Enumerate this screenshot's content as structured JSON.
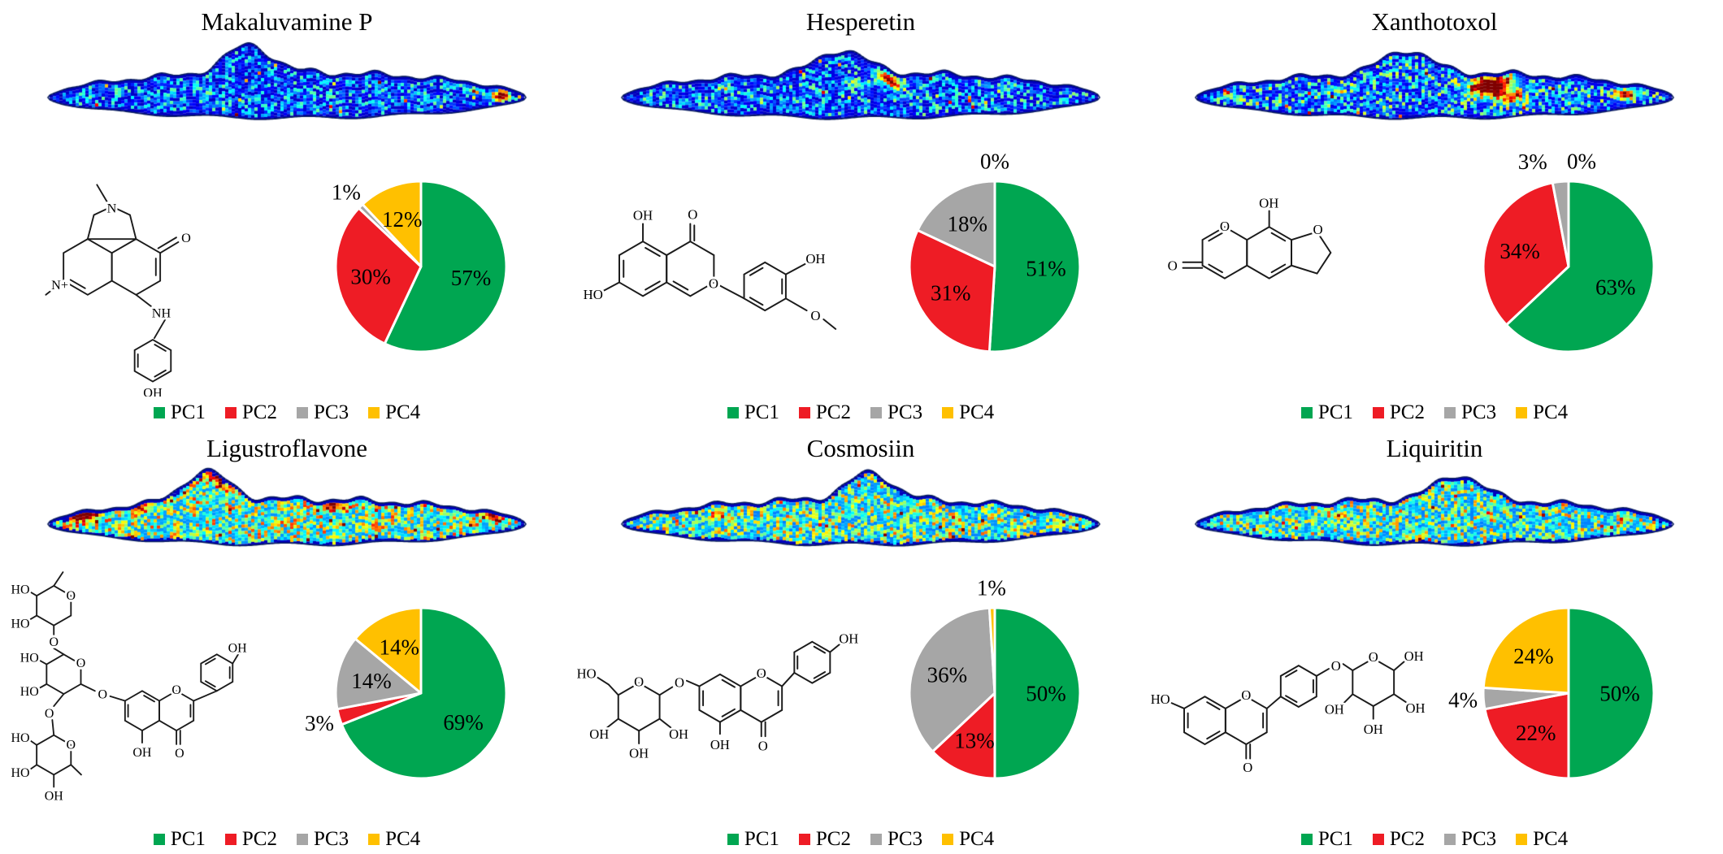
{
  "figure": {
    "legend_template": {
      "items": [
        {
          "label": "PC1",
          "color": "#00A651"
        },
        {
          "label": "PC2",
          "color": "#EE1C25"
        },
        {
          "label": "PC3",
          "color": "#A6A6A6"
        },
        {
          "label": "PC4",
          "color": "#FFC000"
        }
      ]
    },
    "panels": [
      {
        "title": "Makaluvamine P",
        "structure_labels": [
          "N",
          "O",
          "N+",
          "NH",
          "OH"
        ]
      },
      {
        "title": "Hesperetin",
        "structure_labels": [
          "OH",
          "O",
          "HO",
          "O",
          "OH",
          "O"
        ]
      },
      {
        "title": "Xanthotoxol",
        "structure_labels": [
          "O",
          "O",
          "OH",
          "O"
        ]
      },
      {
        "title": "Ligustroflavone",
        "structure_labels": [
          "O",
          "HO",
          "HO",
          "O",
          "O",
          "HO",
          "HO",
          "O",
          "O",
          "O",
          "HO",
          "HO",
          "OH",
          "O",
          "O",
          "OH",
          "OH"
        ]
      },
      {
        "title": "Cosmosiin",
        "structure_labels": [
          "HO",
          "O",
          "OH",
          "OH",
          "OH",
          "O",
          "O",
          "O",
          "OH",
          "OH"
        ]
      },
      {
        "title": "Liquiritin",
        "structure_labels": [
          "HO",
          "O",
          "O",
          "O",
          "O",
          "OH",
          "OH",
          "OH",
          "OH"
        ]
      }
    ]
  },
  "chart_data": [
    {
      "type": "pie",
      "title": "Makaluvamine P",
      "labels": [
        "PC1",
        "PC2",
        "PC3",
        "PC4"
      ],
      "values": [
        57,
        30,
        1,
        12
      ],
      "pct_labels": [
        "57%",
        "30%",
        "1%",
        "12%"
      ],
      "colors": [
        "#00A651",
        "#EE1C25",
        "#A6A6A6",
        "#FFC000"
      ],
      "start_angle_deg": 0,
      "direction": "clockwise",
      "legend_position": "bottom"
    },
    {
      "type": "pie",
      "title": "Hesperetin",
      "labels": [
        "PC1",
        "PC2",
        "PC3",
        "PC4"
      ],
      "values": [
        51,
        31,
        18,
        0
      ],
      "pct_labels": [
        "51%",
        "31%",
        "18%",
        "0%"
      ],
      "colors": [
        "#00A651",
        "#EE1C25",
        "#A6A6A6",
        "#FFC000"
      ],
      "start_angle_deg": 0,
      "direction": "clockwise",
      "legend_position": "bottom"
    },
    {
      "type": "pie",
      "title": "Xanthotoxol",
      "labels": [
        "PC1",
        "PC2",
        "PC3",
        "PC4"
      ],
      "values": [
        63,
        34,
        3,
        0
      ],
      "pct_labels": [
        "63%",
        "34%",
        "3%",
        "0%"
      ],
      "colors": [
        "#00A651",
        "#EE1C25",
        "#A6A6A6",
        "#FFC000"
      ],
      "start_angle_deg": 0,
      "direction": "clockwise",
      "legend_position": "bottom"
    },
    {
      "type": "pie",
      "title": "Ligustroflavone",
      "labels": [
        "PC1",
        "PC2",
        "PC3",
        "PC4"
      ],
      "values": [
        69,
        3,
        14,
        14
      ],
      "pct_labels": [
        "69%",
        "3%",
        "14%",
        "14%"
      ],
      "colors": [
        "#00A651",
        "#EE1C25",
        "#A6A6A6",
        "#FFC000"
      ],
      "start_angle_deg": 0,
      "direction": "clockwise",
      "legend_position": "bottom"
    },
    {
      "type": "pie",
      "title": "Cosmosiin",
      "labels": [
        "PC1",
        "PC2",
        "PC3",
        "PC4"
      ],
      "values": [
        50,
        13,
        36,
        1
      ],
      "pct_labels": [
        "50%",
        "13%",
        "36%",
        "1%"
      ],
      "colors": [
        "#00A651",
        "#EE1C25",
        "#A6A6A6",
        "#FFC000"
      ],
      "start_angle_deg": 0,
      "direction": "clockwise",
      "legend_position": "bottom"
    },
    {
      "type": "pie",
      "title": "Liquiritin",
      "labels": [
        "PC1",
        "PC2",
        "PC3",
        "PC4"
      ],
      "values": [
        50,
        22,
        4,
        24
      ],
      "pct_labels": [
        "50%",
        "22%",
        "4%",
        "24%"
      ],
      "colors": [
        "#00A651",
        "#EE1C25",
        "#A6A6A6",
        "#FFC000"
      ],
      "start_angle_deg": 0,
      "direction": "clockwise",
      "legend_position": "bottom"
    }
  ]
}
